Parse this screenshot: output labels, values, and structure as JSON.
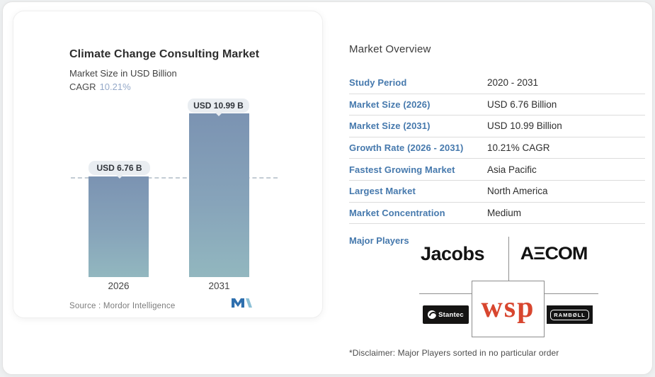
{
  "card": {
    "title": "Climate Change Consulting Market",
    "subtitle": "Market Size in USD Billion",
    "cagr_label": "CAGR",
    "cagr_value": "10.21%",
    "source_text": "Source :  Mordor Intelligence",
    "logo_name": "mordor-intelligence-logo"
  },
  "chart_data": {
    "type": "bar",
    "categories": [
      "2026",
      "2031"
    ],
    "values": [
      6.76,
      10.99
    ],
    "value_labels": [
      "USD 6.76 B",
      "USD 10.99 B"
    ],
    "unit": "USD Billion",
    "title": "Climate Change Consulting Market",
    "xlabel": "",
    "ylabel": "Market Size in USD Billion",
    "ylim": [
      0,
      11.5
    ],
    "grid": false,
    "legend": false,
    "annotations": [
      "dashed reference line at 6.76"
    ],
    "bar_gradient": [
      "#7b93b2",
      "#92b7bf"
    ],
    "dashed_line_color": "#c3ccd4"
  },
  "overview": {
    "heading": "Market Overview",
    "rows": [
      {
        "label": "Study Period",
        "value": "2020 - 2031"
      },
      {
        "label": "Market Size (2026)",
        "value": "USD 6.76 Billion"
      },
      {
        "label": "Market Size (2031)",
        "value": "USD 10.99 Billion"
      },
      {
        "label": "Growth Rate (2026 - 2031)",
        "value": "10.21% CAGR"
      },
      {
        "label": "Fastest Growing Market",
        "value": "Asia Pacific"
      },
      {
        "label": "Largest Market",
        "value": "North America"
      },
      {
        "label": "Market Concentration",
        "value": "Medium"
      }
    ],
    "major_players_label": "Major Players",
    "players": [
      {
        "name": "Jacobs",
        "display": "Jacobs"
      },
      {
        "name": "AECOM",
        "display": "AΞCOM"
      },
      {
        "name": "WSP",
        "display": "wsp"
      },
      {
        "name": "Stantec",
        "display": "Stantec"
      },
      {
        "name": "Ramboll",
        "display": "RAMBØLL"
      }
    ],
    "disclaimer": "*Disclaimer: Major Players sorted in no particular order"
  },
  "colors": {
    "link_blue": "#4679ad",
    "cagr_blue": "#95a9c9",
    "wsp_red": "#d8462f",
    "bar_top": "#7b93b2",
    "bar_bottom": "#92b7bf",
    "mordor_dark_blue": "#2e6fae",
    "mordor_light_blue": "#8cc0d6"
  }
}
